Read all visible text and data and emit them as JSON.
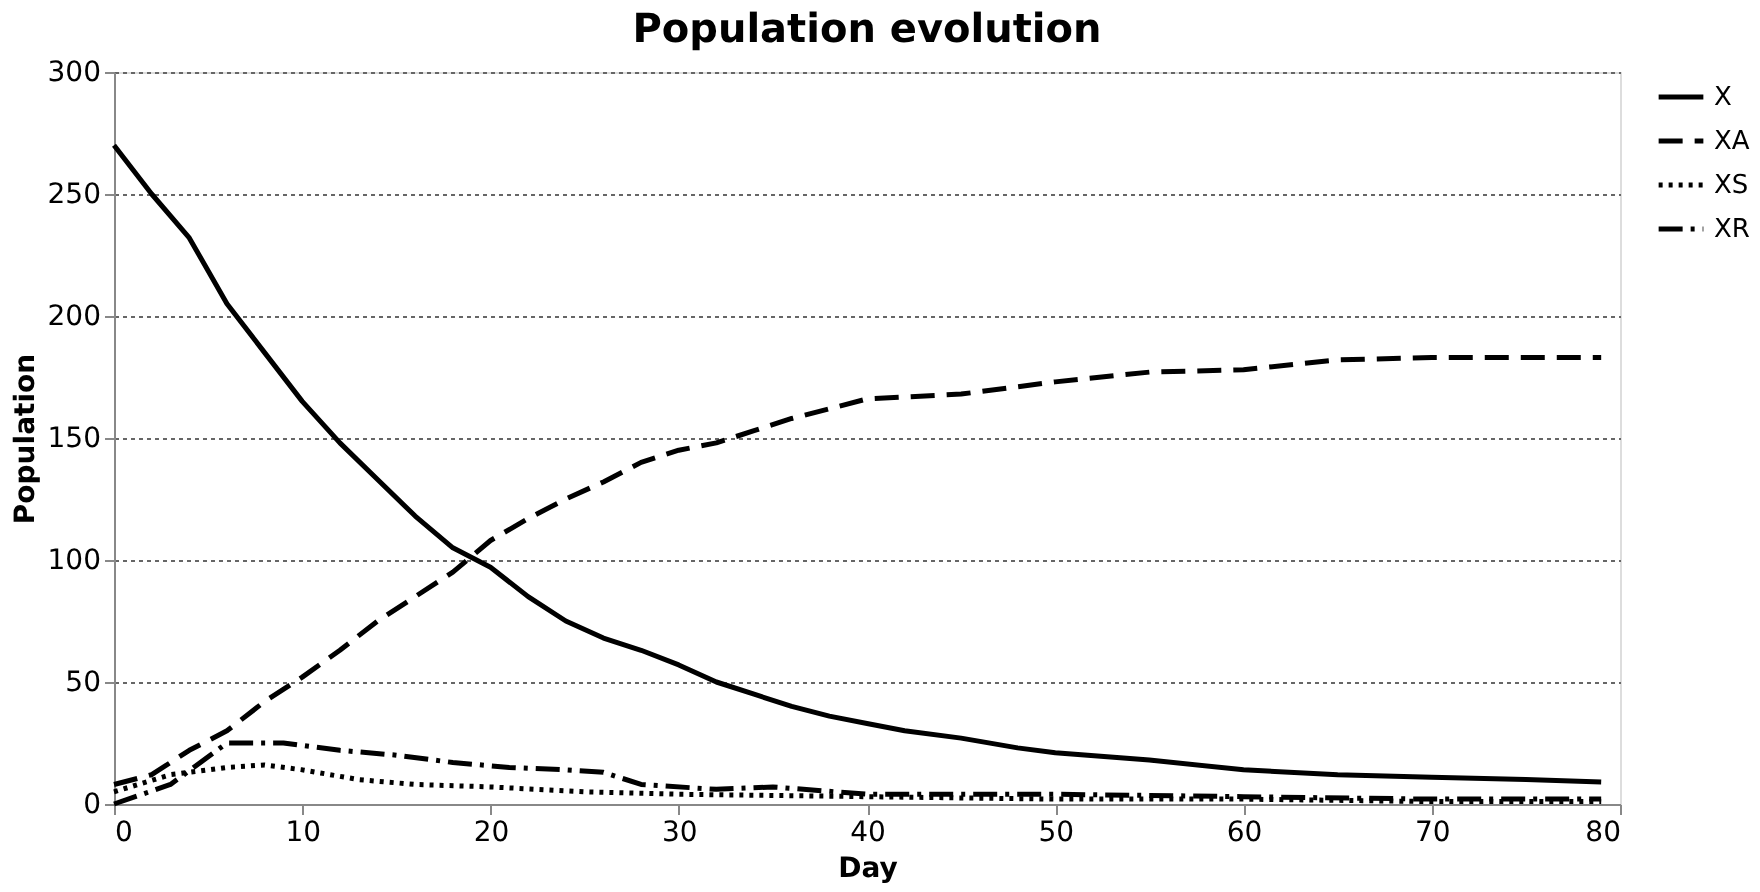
{
  "chart_data": {
    "type": "line",
    "title": "Population evolution",
    "xlabel": "Day",
    "ylabel": "Population",
    "xlim": [
      0,
      80
    ],
    "xticks": [
      0,
      10,
      20,
      30,
      40,
      50,
      60,
      70,
      80
    ],
    "ylim": [
      0,
      300
    ],
    "yticks": [
      0,
      50,
      100,
      150,
      200,
      250,
      300
    ],
    "grid": "y",
    "legend": "right",
    "marker": "none",
    "series": [
      {
        "name": "X",
        "color": "#000000",
        "line_style": "solid",
        "x": [
          0,
          2,
          4,
          6,
          8,
          10,
          12,
          14,
          16,
          18,
          20,
          22,
          24,
          26,
          28,
          30,
          32,
          34,
          36,
          38,
          40,
          42,
          45,
          48,
          50,
          55,
          60,
          65,
          70,
          75,
          79
        ],
        "values": [
          270,
          250,
          232,
          205,
          185,
          165,
          148,
          133,
          118,
          105,
          97,
          85,
          75,
          68,
          63,
          57,
          50,
          45,
          40,
          36,
          33,
          30,
          27,
          23,
          21,
          18,
          14,
          12,
          11,
          10,
          9
        ]
      },
      {
        "name": "XA",
        "color": "#000000",
        "line_style": "dashed",
        "x": [
          0,
          2,
          4,
          6,
          8,
          10,
          12,
          14,
          16,
          18,
          20,
          22,
          24,
          26,
          28,
          30,
          32,
          34,
          36,
          38,
          40,
          45,
          50,
          55,
          60,
          65,
          70,
          75,
          79
        ],
        "values": [
          8,
          12,
          22,
          30,
          42,
          52,
          63,
          75,
          85,
          95,
          108,
          117,
          125,
          132,
          140,
          145,
          148,
          153,
          158,
          162,
          166,
          168,
          173,
          177,
          178,
          182,
          183,
          183,
          183
        ]
      },
      {
        "name": "XS",
        "color": "#000000",
        "line_style": "dotted",
        "x": [
          0,
          3,
          6,
          8,
          10,
          13,
          16,
          20,
          25,
          30,
          40,
          50,
          60,
          70,
          79
        ],
        "values": [
          5,
          12,
          15,
          16,
          14,
          10,
          8,
          7,
          5,
          4,
          3,
          2,
          2,
          1,
          1
        ]
      },
      {
        "name": "XR",
        "color": "#000000",
        "line_style": "dashdot",
        "x": [
          0,
          3,
          6,
          9,
          12,
          15,
          18,
          21,
          24,
          26,
          28,
          32,
          35,
          40,
          50,
          60,
          70,
          79
        ],
        "values": [
          0,
          8,
          25,
          25,
          22,
          20,
          17,
          15,
          14,
          13,
          8,
          6,
          7,
          4,
          4,
          3,
          2,
          2
        ]
      }
    ]
  }
}
